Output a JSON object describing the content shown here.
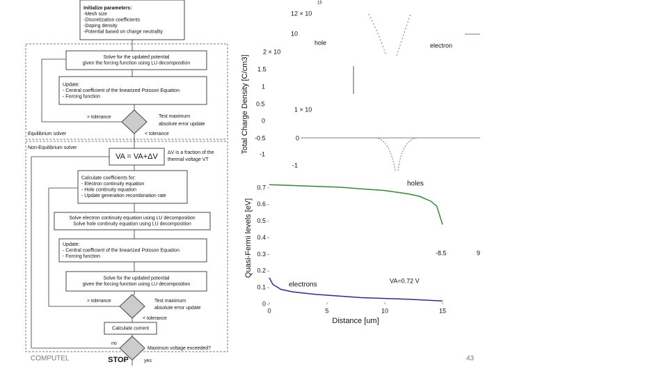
{
  "flowchart": {
    "nodes": [
      {
        "lines": [
          "Initialize parameters:",
          "-Mesh size",
          "-Discretization coefficients",
          "-Doping density",
          "-Potential based on charge neutrality"
        ]
      },
      {
        "lines": [
          "Solve for the updated potential",
          "given the forcing function using LU decomposition"
        ]
      },
      {
        "lines": [
          "Update:",
          "- Central coefficient of the linearized Poisson Equation",
          "- Forcing function"
        ]
      },
      {
        "lines": [
          "VA = VA+ΔV"
        ]
      },
      {
        "lines": [
          "Calculate coefficients for:",
          "- Electron continuity equation",
          "- Hole continuity equation",
          "- Update generation recombination rate"
        ]
      },
      {
        "lines": [
          "Solve electron continuity equation using LU decomposition",
          "Solve hole continuity equation using LU decomposition"
        ]
      },
      {
        "lines": [
          "Update:",
          "- Central coefficient of the linearized Poisson Equation",
          "- Forcing function"
        ]
      },
      {
        "lines": [
          "Solve for the updated potential",
          "given the forcing function using LU decomposition"
        ]
      },
      {
        "lines": [
          "Calculate current"
        ]
      },
      {
        "lines": [
          "STOP"
        ]
      }
    ],
    "labels": [
      "> tolerance",
      "Test maximum",
      "absolute error update",
      "Equilibrium solver",
      "< tolerance",
      "Non-Equilibrium solver",
      "ΔV is a fraction of the",
      "thermal voltage VT",
      "> tolerance",
      "Test maximum",
      "absolute error update",
      "< tolerance",
      "no",
      "Maximum voltage exceeded?",
      "yes"
    ]
  },
  "background_fragments": [
    "12 × 10",
    "15",
    "10",
    "hole",
    "electron",
    "2 × 10",
    "1.5",
    "1",
    "0.5",
    "1 × 10",
    "0",
    "-0.5",
    "0",
    "-1",
    "-1",
    "Total Charge Density [C/cm3]",
    "-8.5",
    "9"
  ],
  "chart_data": {
    "type": "line",
    "xlabel": "Distance [um]",
    "ylabel": "Quasi-Fermi levels [eV]",
    "xlim": [
      0,
      15
    ],
    "ylim": [
      0,
      0.7
    ],
    "xticks": [
      0,
      5,
      10,
      15
    ],
    "yticks": [
      0,
      0.1,
      0.2,
      0.3,
      0.4,
      0.5,
      0.6,
      0.7
    ],
    "series": [
      {
        "name": "holes",
        "color": "#2e8b2e",
        "x": [
          0,
          2,
          4,
          6,
          8,
          10,
          12,
          13,
          14,
          14.5,
          15
        ],
        "values": [
          0.72,
          0.715,
          0.71,
          0.705,
          0.695,
          0.685,
          0.665,
          0.65,
          0.62,
          0.59,
          0.48
        ]
      },
      {
        "name": "electrons",
        "color": "#2a2aa0",
        "x": [
          0,
          0.3,
          1,
          2,
          4,
          6,
          8,
          10,
          12,
          15
        ],
        "values": [
          0.16,
          0.12,
          0.09,
          0.075,
          0.06,
          0.05,
          0.04,
          0.035,
          0.03,
          0.02
        ]
      }
    ],
    "annotation": "VA=0.72 V"
  },
  "footer": {
    "left": "COMPUTEL",
    "page": "43"
  }
}
